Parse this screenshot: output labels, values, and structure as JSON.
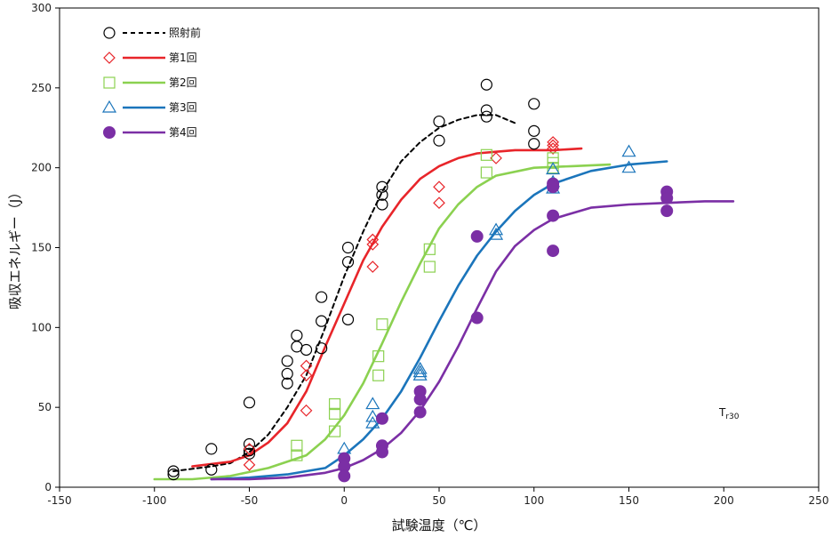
{
  "chart_data": {
    "type": "scatter",
    "xlabel": "試験温度（℃）",
    "ylabel": "吸収エネルギー（J）",
    "xlim": [
      -150,
      250
    ],
    "ylim": [
      0,
      300
    ],
    "xticks": [
      "-150",
      "-100",
      "-50",
      "0",
      "50",
      "100",
      "150",
      "200",
      "250"
    ],
    "yticks": [
      "0",
      "50",
      "100",
      "150",
      "200",
      "250",
      "300"
    ],
    "grid": false,
    "legend_position": "top-left",
    "annotation": {
      "main": "T",
      "sub": "r30"
    },
    "series": [
      {
        "name": "照射前",
        "marker": "circle-open",
        "line": "dashed",
        "color": "#000000",
        "points": [
          [
            -90,
            10
          ],
          [
            -90,
            8
          ],
          [
            -70,
            24
          ],
          [
            -70,
            11
          ],
          [
            -50,
            53
          ],
          [
            -50,
            27
          ],
          [
            -50,
            23
          ],
          [
            -50,
            21
          ],
          [
            -30,
            79
          ],
          [
            -30,
            71
          ],
          [
            -30,
            65
          ],
          [
            -25,
            88
          ],
          [
            -25,
            95
          ],
          [
            -20,
            86
          ],
          [
            -12,
            119
          ],
          [
            -12,
            104
          ],
          [
            -12,
            87
          ],
          [
            2,
            150
          ],
          [
            2,
            141
          ],
          [
            2,
            105
          ],
          [
            20,
            188
          ],
          [
            20,
            183
          ],
          [
            20,
            177
          ],
          [
            50,
            229
          ],
          [
            50,
            217
          ],
          [
            75,
            252
          ],
          [
            75,
            236
          ],
          [
            75,
            232
          ],
          [
            100,
            240
          ],
          [
            100,
            223
          ],
          [
            100,
            215
          ]
        ],
        "fit": [
          [
            -90,
            10
          ],
          [
            -70,
            13
          ],
          [
            -60,
            15
          ],
          [
            -50,
            22
          ],
          [
            -40,
            33
          ],
          [
            -30,
            50
          ],
          [
            -20,
            70
          ],
          [
            -10,
            100
          ],
          [
            0,
            132
          ],
          [
            10,
            160
          ],
          [
            20,
            185
          ],
          [
            30,
            204
          ],
          [
            40,
            216
          ],
          [
            50,
            225
          ],
          [
            60,
            230
          ],
          [
            70,
            233
          ],
          [
            80,
            233
          ],
          [
            90,
            228
          ]
        ]
      },
      {
        "name": "第1回",
        "marker": "diamond-open",
        "line": "solid",
        "color": "#e8252a",
        "points": [
          [
            -50,
            14
          ],
          [
            -50,
            24
          ],
          [
            -20,
            76
          ],
          [
            -20,
            70
          ],
          [
            -20,
            48
          ],
          [
            15,
            155
          ],
          [
            15,
            152
          ],
          [
            15,
            138
          ],
          [
            50,
            188
          ],
          [
            50,
            178
          ],
          [
            80,
            206
          ],
          [
            110,
            216
          ],
          [
            110,
            214
          ],
          [
            110,
            212
          ]
        ],
        "fit": [
          [
            -80,
            13
          ],
          [
            -60,
            16
          ],
          [
            -50,
            20
          ],
          [
            -40,
            28
          ],
          [
            -30,
            40
          ],
          [
            -20,
            60
          ],
          [
            -10,
            88
          ],
          [
            0,
            115
          ],
          [
            10,
            142
          ],
          [
            20,
            163
          ],
          [
            30,
            180
          ],
          [
            40,
            193
          ],
          [
            50,
            201
          ],
          [
            60,
            206
          ],
          [
            70,
            209
          ],
          [
            80,
            210
          ],
          [
            90,
            211
          ],
          [
            110,
            211
          ],
          [
            125,
            212
          ]
        ]
      },
      {
        "name": "第2回",
        "marker": "square-open",
        "line": "solid",
        "color": "#8bd150",
        "points": [
          [
            -25,
            26
          ],
          [
            -25,
            20
          ],
          [
            -5,
            52
          ],
          [
            -5,
            46
          ],
          [
            -5,
            35
          ],
          [
            18,
            82
          ],
          [
            18,
            70
          ],
          [
            20,
            102
          ],
          [
            45,
            149
          ],
          [
            45,
            138
          ],
          [
            75,
            208
          ],
          [
            75,
            197
          ],
          [
            110,
            206
          ],
          [
            110,
            203
          ],
          [
            110,
            200
          ]
        ],
        "fit": [
          [
            -100,
            5
          ],
          [
            -80,
            5
          ],
          [
            -60,
            7
          ],
          [
            -40,
            12
          ],
          [
            -20,
            20
          ],
          [
            -10,
            30
          ],
          [
            0,
            45
          ],
          [
            10,
            65
          ],
          [
            20,
            90
          ],
          [
            30,
            116
          ],
          [
            40,
            140
          ],
          [
            50,
            162
          ],
          [
            60,
            177
          ],
          [
            70,
            188
          ],
          [
            80,
            195
          ],
          [
            100,
            200
          ],
          [
            120,
            201
          ],
          [
            140,
            202
          ]
        ]
      },
      {
        "name": "第3回",
        "marker": "triangle-open",
        "line": "solid",
        "color": "#1b75bb",
        "points": [
          [
            0,
            24
          ],
          [
            15,
            52
          ],
          [
            15,
            44
          ],
          [
            15,
            40
          ],
          [
            40,
            74
          ],
          [
            40,
            72
          ],
          [
            40,
            70
          ],
          [
            80,
            161
          ],
          [
            80,
            158
          ],
          [
            110,
            199
          ],
          [
            110,
            191
          ],
          [
            110,
            187
          ],
          [
            150,
            210
          ],
          [
            150,
            200
          ]
        ],
        "fit": [
          [
            -70,
            5
          ],
          [
            -50,
            6
          ],
          [
            -30,
            8
          ],
          [
            -10,
            12
          ],
          [
            0,
            20
          ],
          [
            10,
            30
          ],
          [
            20,
            43
          ],
          [
            30,
            60
          ],
          [
            40,
            81
          ],
          [
            50,
            104
          ],
          [
            60,
            126
          ],
          [
            70,
            145
          ],
          [
            80,
            160
          ],
          [
            90,
            173
          ],
          [
            100,
            183
          ],
          [
            110,
            190
          ],
          [
            130,
            198
          ],
          [
            150,
            202
          ],
          [
            170,
            204
          ]
        ]
      },
      {
        "name": "第4回",
        "marker": "circle-filled",
        "line": "solid",
        "color": "#7b2fa5",
        "points": [
          [
            0,
            18
          ],
          [
            0,
            13
          ],
          [
            0,
            7
          ],
          [
            20,
            43
          ],
          [
            20,
            26
          ],
          [
            20,
            22
          ],
          [
            40,
            60
          ],
          [
            40,
            55
          ],
          [
            40,
            47
          ],
          [
            70,
            157
          ],
          [
            70,
            106
          ],
          [
            110,
            190
          ],
          [
            110,
            188
          ],
          [
            110,
            170
          ],
          [
            110,
            148
          ],
          [
            170,
            185
          ],
          [
            170,
            181
          ],
          [
            170,
            173
          ]
        ],
        "fit": [
          [
            -70,
            5
          ],
          [
            -50,
            5
          ],
          [
            -30,
            6
          ],
          [
            -10,
            9
          ],
          [
            0,
            12
          ],
          [
            10,
            17
          ],
          [
            20,
            24
          ],
          [
            30,
            34
          ],
          [
            40,
            48
          ],
          [
            50,
            66
          ],
          [
            60,
            88
          ],
          [
            70,
            112
          ],
          [
            80,
            135
          ],
          [
            90,
            151
          ],
          [
            100,
            161
          ],
          [
            110,
            168
          ],
          [
            130,
            175
          ],
          [
            150,
            177
          ],
          [
            170,
            178
          ],
          [
            190,
            179
          ],
          [
            205,
            179
          ]
        ]
      }
    ]
  }
}
